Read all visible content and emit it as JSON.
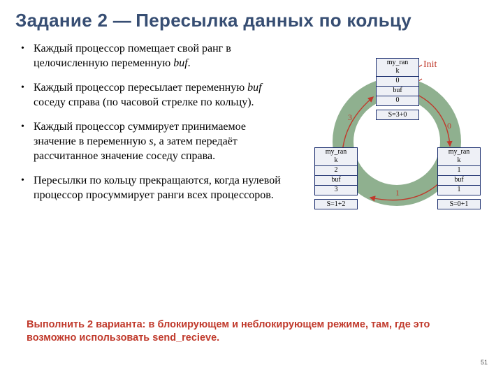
{
  "title_a": "Задание 2  ",
  "title_dash": "—",
  "title_b": "   Пересылка данных по кольцу",
  "bullets": [
    "Каждый процессор помещает свой ранг в целочисленную переменную <em class=\"i\">buf</em>.",
    "Каждый процессор пересылает переменную <em class=\"i\">buf</em>  соседу справа (по часовой стрелке  по кольцу).",
    "Каждый процессор суммирует принимаемое значение в переменную <em class=\"i\">s</em>, а затем передаёт рассчитанное значение соседу справа.",
    "Пересылки по кольцу прекращаются, когда нулевой процессор просуммирует ранги всех процессоров."
  ],
  "diagram": {
    "init_label": "Init",
    "edge_labels": [
      "3",
      "0",
      "1"
    ],
    "nodes": [
      {
        "rank": "0",
        "buf": "0",
        "sum": "S=3+0"
      },
      {
        "rank": "1",
        "buf": "1",
        "sum": "S=0+1"
      },
      {
        "rank": "2",
        "buf": "3",
        "sum": "S=1+2"
      }
    ],
    "colors": {
      "ring": "#8fb08f",
      "box_border": "#1a2d6e",
      "accent": "#c0392b"
    }
  },
  "task_note": "Выполнить 2 варианта: в блокирующем и неблокирующем режиме, там, где это возможно использовать send_recieve.",
  "page": "51"
}
